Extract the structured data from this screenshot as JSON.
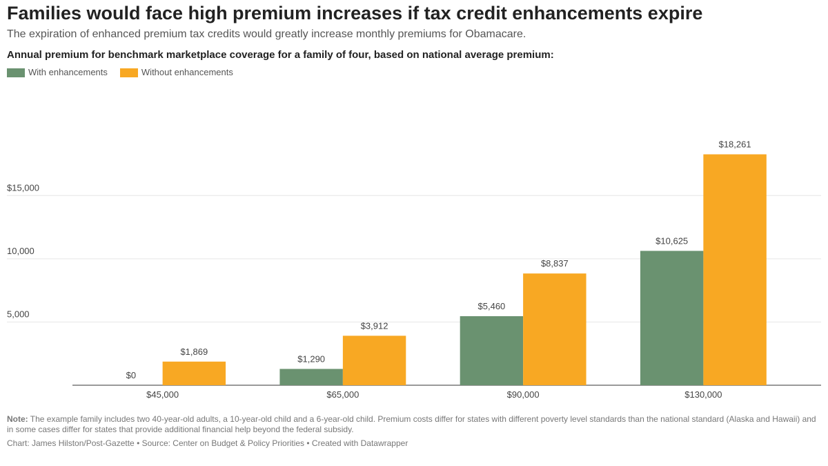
{
  "chart_data": {
    "type": "grouped-bar",
    "title": "Families would face high premium increases if tax credit enhancements expire",
    "subtitle": "The expiration of enhanced premium tax credits would greatly increase monthly premiums for Obamacare.",
    "chart_title": "Annual premium for benchmark marketplace coverage for a family of four, based on national average premium:",
    "categories": [
      "$45,000",
      "$65,000",
      "$90,000",
      "$130,000"
    ],
    "series": [
      {
        "name": "With enhancements",
        "color": "#6a9270",
        "values": [
          0,
          1290,
          5460,
          10625
        ],
        "value_labels": [
          "$0",
          "$1,290",
          "$5,460",
          "$10,625"
        ]
      },
      {
        "name": "Without enhancements",
        "color": "#f8a823",
        "values": [
          1869,
          3912,
          8837,
          18261
        ],
        "value_labels": [
          "$1,869",
          "$3,912",
          "$8,837",
          "$18,261"
        ]
      }
    ],
    "ylim": [
      0,
      19000
    ],
    "yticks": [
      {
        "value": 5000,
        "label": "5,000"
      },
      {
        "value": 10000,
        "label": "10,000"
      },
      {
        "value": 15000,
        "label": "$15,000"
      }
    ],
    "grid": true,
    "note_label": "Note:",
    "note": "The example family includes two 40-year-old adults, a 10-year-old child and a 6-year-old child. Premium costs differ for states with different poverty level standards than the national standard (Alaska and Hawaii) and in some cases differ for states that provide additional financial help beyond the federal subsidy.",
    "source": "Chart: James Hilston/Post-Gazette • Source: Center on Budget & Policy Priorities • Created with Datawrapper"
  }
}
